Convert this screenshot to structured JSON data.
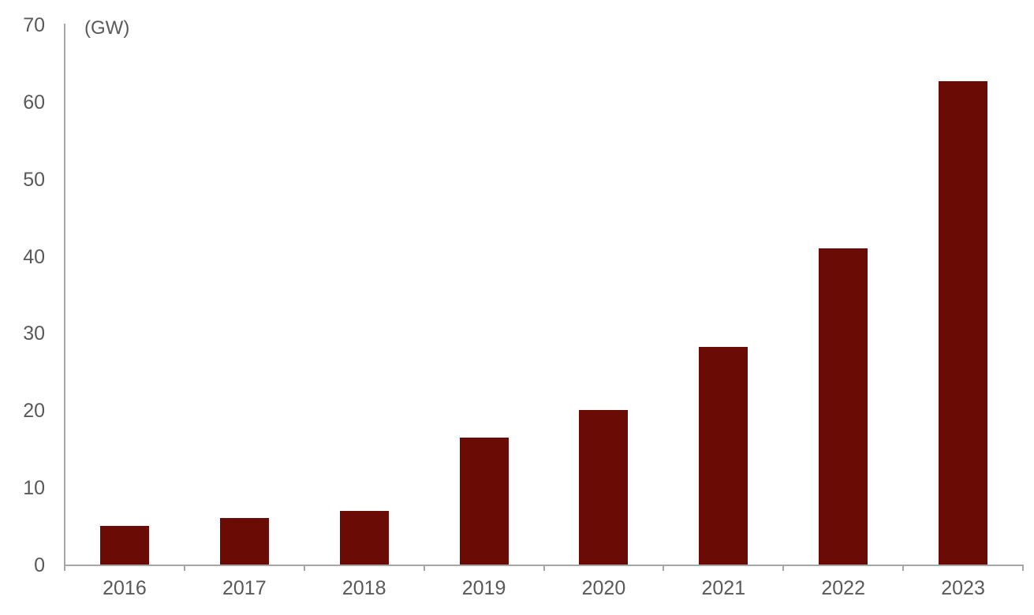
{
  "chart_data": {
    "type": "bar",
    "title": "",
    "unit_label": "(GW)",
    "categories": [
      "2016",
      "2017",
      "2018",
      "2019",
      "2020",
      "2021",
      "2022",
      "2023"
    ],
    "values": [
      5,
      6,
      7,
      16.5,
      20,
      28.2,
      41,
      62.6
    ],
    "xlabel": "",
    "ylabel": "GW",
    "ylim": [
      0,
      70
    ],
    "yticks": [
      0,
      10,
      20,
      30,
      40,
      50,
      60,
      70
    ],
    "grid": false,
    "legend": null,
    "colors": {
      "bar": "#6b0b05",
      "axis": "#a6a6a6",
      "label": "#595959",
      "background": "#ffffff"
    }
  }
}
